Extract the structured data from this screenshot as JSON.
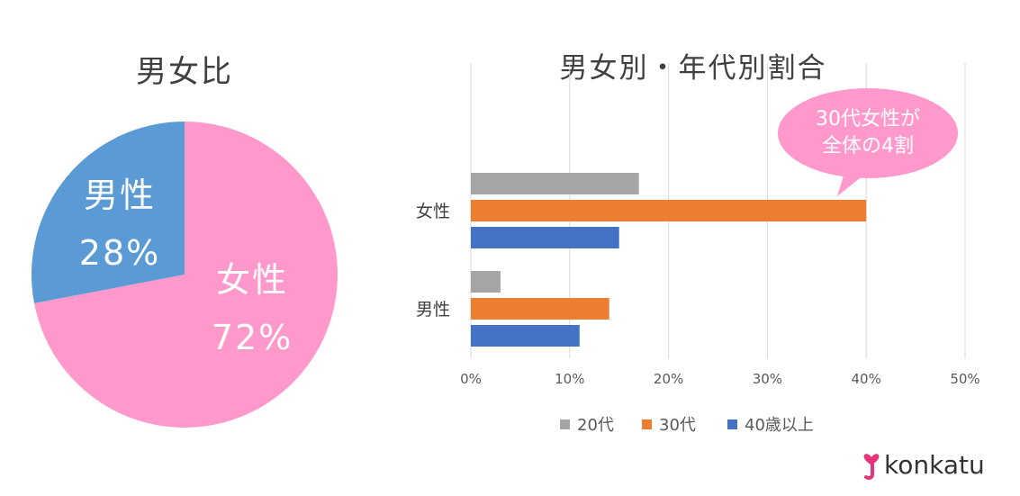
{
  "pie": {
    "title": "男女比",
    "slices": [
      {
        "name": "男性",
        "label": "男性",
        "percent_label": "28%",
        "value": 28,
        "color": "#5b9bd5"
      },
      {
        "name": "女性",
        "label": "女性",
        "percent_label": "72%",
        "value": 72,
        "color": "#ff99cc"
      }
    ]
  },
  "bar": {
    "title": "男女別・年代別割合",
    "callout": {
      "line1": "30代女性が",
      "line2": "全体の4割",
      "color": "#ff99cc"
    }
  },
  "logo": {
    "text": "konkatu",
    "mark_color": "#e6337a"
  },
  "chart_data": [
    {
      "type": "pie",
      "title": "男女比",
      "categories": [
        "男性",
        "女性"
      ],
      "values": [
        28,
        72
      ],
      "colors": [
        "#5b9bd5",
        "#ff99cc"
      ]
    },
    {
      "type": "bar",
      "orientation": "horizontal",
      "title": "男女別・年代別割合",
      "categories": [
        "女性",
        "男性"
      ],
      "series": [
        {
          "name": "20代",
          "values": [
            17,
            3
          ],
          "color": "#a5a5a5"
        },
        {
          "name": "30代",
          "values": [
            40,
            14
          ],
          "color": "#ed7d31"
        },
        {
          "name": "40歳以上",
          "values": [
            15,
            11
          ],
          "color": "#4472c4"
        }
      ],
      "xlim": [
        0,
        50
      ],
      "ticks": [
        "0%",
        "10%",
        "20%",
        "30%",
        "40%",
        "50%"
      ],
      "grid": true,
      "legend": "bottom"
    }
  ]
}
